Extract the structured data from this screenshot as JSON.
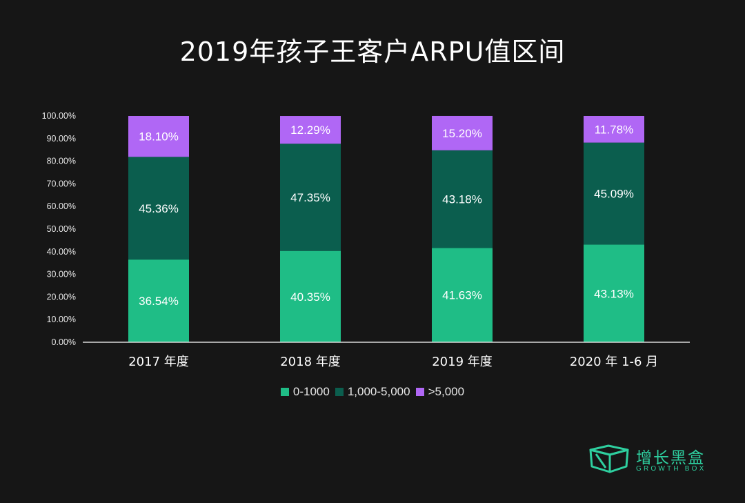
{
  "title": "2019年孩子王客户ARPU值区间",
  "colors": {
    "background": "#161616",
    "series_low": "#1fbd86",
    "series_mid": "#0b5e4e",
    "series_high": "#b067f5",
    "brand": "#2ecf9f"
  },
  "brand": {
    "name": "增长黑盒",
    "sub": "GROWTH BOX",
    "icon": "box-logo-icon"
  },
  "chart_data": {
    "type": "bar",
    "stacked": true,
    "categories": [
      "2017 年度",
      "2018 年度",
      "2019 年度",
      "2020 年 1-6 月"
    ],
    "series": [
      {
        "name": "0-1000",
        "values": [
          36.54,
          40.35,
          41.63,
          43.13
        ],
        "labels": [
          "36.54%",
          "40.35%",
          "41.63%",
          "43.13%"
        ]
      },
      {
        "name": "1,000-5,000",
        "values": [
          45.36,
          47.35,
          43.18,
          45.09
        ],
        "labels": [
          "45.36%",
          "47.35%",
          "43.18%",
          "45.09%"
        ]
      },
      {
        "name": ">5,000",
        "values": [
          18.1,
          12.29,
          15.2,
          11.78
        ],
        "labels": [
          "18.10%",
          "12.29%",
          "15.20%",
          "11.78%"
        ]
      }
    ],
    "yticks": [
      "0.00%",
      "10.00%",
      "20.00%",
      "30.00%",
      "40.00%",
      "50.00%",
      "60.00%",
      "70.00%",
      "80.00%",
      "90.00%",
      "100.00%"
    ],
    "ylim": [
      0,
      100
    ],
    "grid": false,
    "legend": "bottom"
  }
}
